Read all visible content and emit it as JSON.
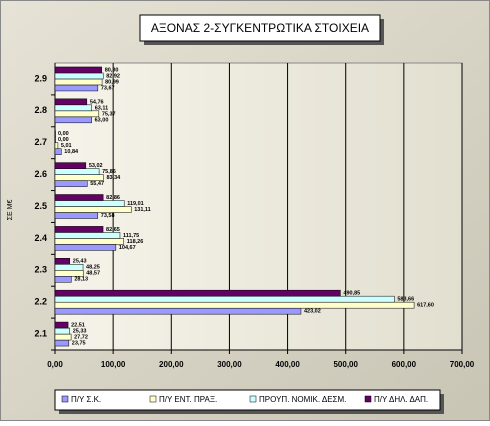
{
  "chart_data": {
    "type": "hbar",
    "title": "ΑΞΟΝΑΣ 2-ΣΥΓΚΕΝΤΡΩΤΙΚΑ ΣΤΟΙΧΕΙΑ",
    "y_label": "ΣΕ Μ€",
    "categories": [
      "2.1",
      "2.2",
      "2.3",
      "2.4",
      "2.5",
      "2.6",
      "2.7",
      "2.8",
      "2.9"
    ],
    "series": [
      {
        "name": "Π/Υ Σ.Κ.",
        "color": "#9999ff",
        "values": [
          23.75,
          423.02,
          28.13,
          104.67,
          73.58,
          55.47,
          10.84,
          63.0,
          73.67
        ],
        "value_labels": [
          "23,75",
          "423,02",
          "28,13",
          "104,67",
          "73,58",
          "55,47",
          "10,84",
          "63,00",
          "73,67"
        ]
      },
      {
        "name": "Π/Υ ΕΝΤ. ΠΡΑΞ.",
        "color": "#ffffcc",
        "values": [
          27.72,
          617.6,
          48.57,
          118.26,
          131.11,
          83.34,
          5.01,
          75.37,
          80.99
        ],
        "value_labels": [
          "27,72",
          "617,60",
          "48,57",
          "118,26",
          "131,11",
          "83,34",
          "5,01",
          "75,37",
          "80,99"
        ]
      },
      {
        "name": "ΠΡΟΥΠ. ΝΟΜΙΚ. ΔΕΣΜ.",
        "color": "#ccffff",
        "values": [
          25.33,
          583.66,
          48.25,
          111.75,
          119.01,
          75.86,
          0.0,
          63.11,
          82.92
        ],
        "value_labels": [
          "25,33",
          "583,66",
          "48,25",
          "111,75",
          "119,01",
          "75,86",
          "0,00",
          "63,11",
          "82,92"
        ]
      },
      {
        "name": "Π/Υ ΔΗΛ. ΔΑΠ.",
        "color": "#660066",
        "values": [
          22.51,
          490.85,
          25.43,
          82.65,
          82.86,
          53.02,
          0.0,
          54.76,
          80.3
        ],
        "value_labels": [
          "22,51",
          "490,85",
          "25,43",
          "82,65",
          "82,86",
          "53,02",
          "0,00",
          "54,76",
          "80,30"
        ]
      }
    ],
    "xlim": [
      0,
      700
    ],
    "xticks": [
      {
        "value": 0,
        "label": "0,00"
      },
      {
        "value": 100,
        "label": "100,00"
      },
      {
        "value": 200,
        "label": "200,00"
      },
      {
        "value": 300,
        "label": "300,00"
      },
      {
        "value": 400,
        "label": "400,00"
      },
      {
        "value": 500,
        "label": "500,00"
      },
      {
        "value": 600,
        "label": "600,00"
      },
      {
        "value": 700,
        "label": "700,00"
      }
    ],
    "grid": true
  }
}
